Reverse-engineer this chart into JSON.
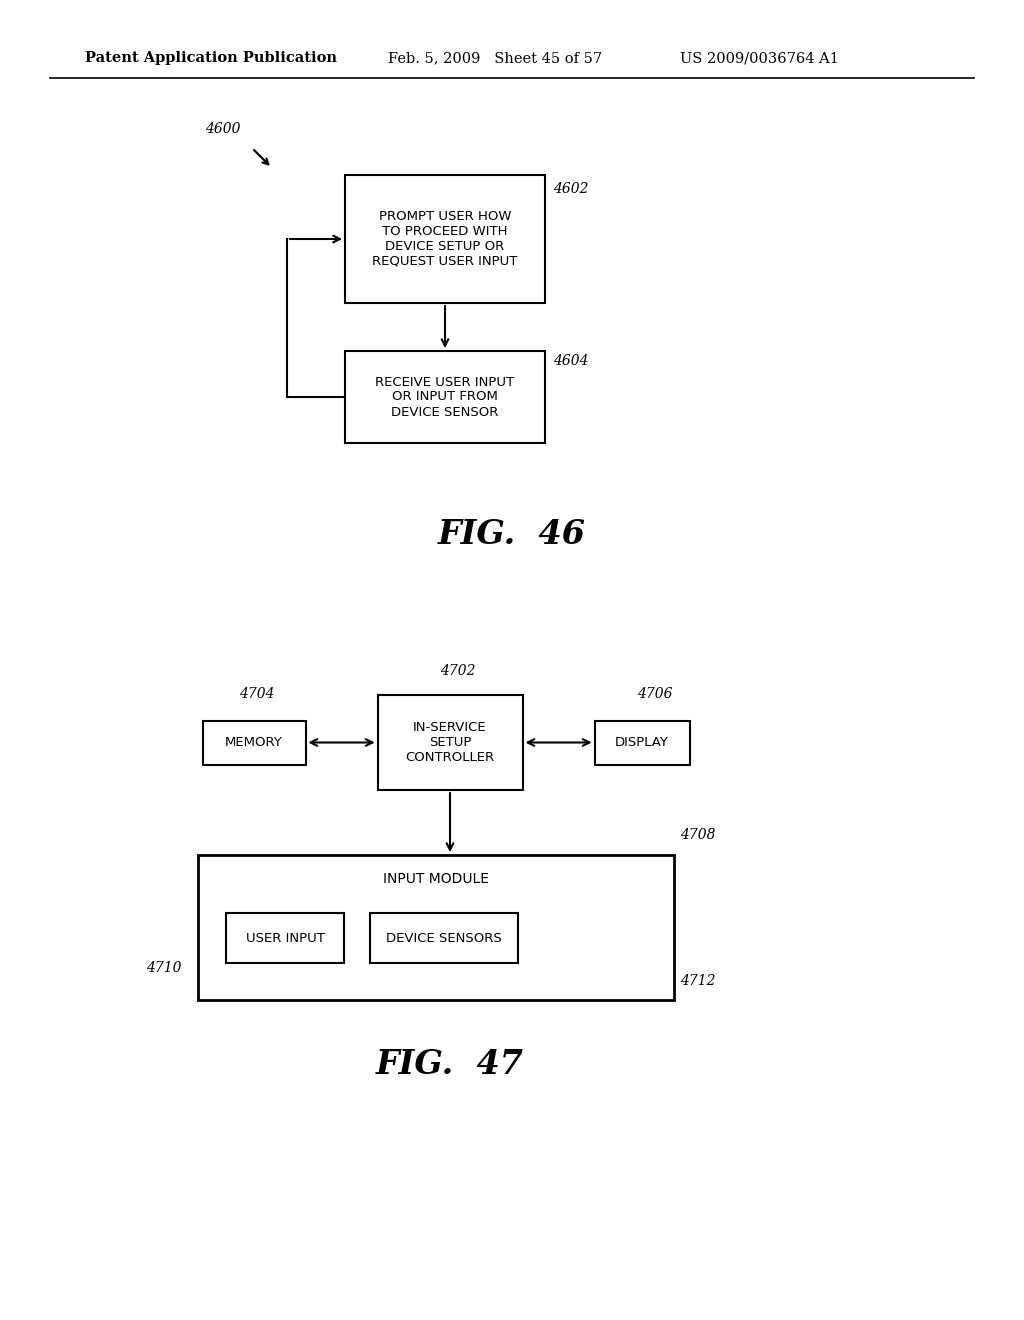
{
  "bg_color": "#ffffff",
  "header_text": "Patent Application Publication",
  "header_date": "Feb. 5, 2009   Sheet 45 of 57",
  "header_patent": "US 2009/0036764 A1",
  "fig46_label": "FIG.  46",
  "fig47_label": "FIG.  47",
  "fig46_ref": "4600",
  "fig47_blocks": {
    "controller": {
      "label": "IN-SERVICE\nSETUP\nCONTROLLER",
      "ref": "4702"
    },
    "memory": {
      "label": "MEMORY",
      "ref": "4704"
    },
    "display": {
      "label": "DISPLAY",
      "ref": "4706"
    },
    "input_module": {
      "label": "INPUT MODULE",
      "ref": "4708"
    },
    "user_input": {
      "label": "USER INPUT",
      "ref": "4710"
    },
    "device_sensors": {
      "label": "DEVICE SENSORS",
      "ref": "4712"
    }
  },
  "fig46_blocks": {
    "prompt": {
      "label": "PROMPT USER HOW\nTO PROCEED WITH\nDEVICE SETUP OR\nREQUEST USER INPUT",
      "ref": "4602"
    },
    "receive": {
      "label": "RECEIVE USER INPUT\nOR INPUT FROM\nDEVICE SENSOR",
      "ref": "4604"
    }
  }
}
